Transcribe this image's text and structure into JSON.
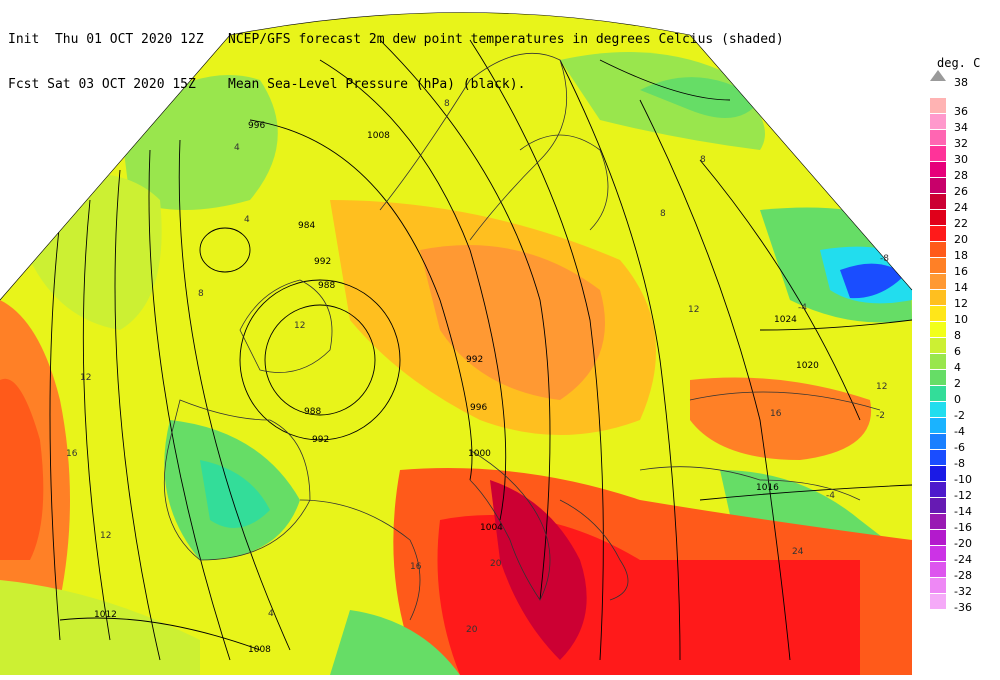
{
  "header": {
    "line1_left": "Init  Thu 01 OCT 2020 12Z",
    "line1_right": "NCEP/GFS forecast 2m dew point temperatures in degrees Celcius (shaded)",
    "line2_left": "Fcst Sat 03 OCT 2020 15Z",
    "line2_right": "Mean Sea-Level Pressure (hPa) (black)."
  },
  "legend": {
    "title": "deg. C",
    "top_value": "38",
    "entries": [
      {
        "label": "36",
        "color": "#ffb3b3"
      },
      {
        "label": "34",
        "color": "#ff99cc"
      },
      {
        "label": "32",
        "color": "#ff66b2"
      },
      {
        "label": "30",
        "color": "#ff3399"
      },
      {
        "label": "28",
        "color": "#e6007a"
      },
      {
        "label": "26",
        "color": "#c8006a"
      },
      {
        "label": "24",
        "color": "#cc0033"
      },
      {
        "label": "22",
        "color": "#e0001a"
      },
      {
        "label": "20",
        "color": "#ff1a1a"
      },
      {
        "label": "18",
        "color": "#ff5a1a"
      },
      {
        "label": "16",
        "color": "#ff8026"
      },
      {
        "label": "14",
        "color": "#ff9933"
      },
      {
        "label": "12",
        "color": "#ffbf1f"
      },
      {
        "label": "10",
        "color": "#ffe619"
      },
      {
        "label": "8",
        "color": "#f2ff1a"
      },
      {
        "label": "6",
        "color": "#ccf033"
      },
      {
        "label": "4",
        "color": "#99e64d"
      },
      {
        "label": "2",
        "color": "#66dd66"
      },
      {
        "label": "0",
        "color": "#33dd99"
      },
      {
        "label": "-2",
        "color": "#22ddee"
      },
      {
        "label": "-4",
        "color": "#1ab3ff"
      },
      {
        "label": "-6",
        "color": "#1a80ff"
      },
      {
        "label": "-8",
        "color": "#1a4dff"
      },
      {
        "label": "-10",
        "color": "#1a1ae6"
      },
      {
        "label": "-12",
        "color": "#4d1acc"
      },
      {
        "label": "-14",
        "color": "#661ab3"
      },
      {
        "label": "-16",
        "color": "#991ab3"
      },
      {
        "label": "-20",
        "color": "#b31acc"
      },
      {
        "label": "-24",
        "color": "#cc33e6"
      },
      {
        "label": "-28",
        "color": "#dd55ee"
      },
      {
        "label": "-32",
        "color": "#ee88f5"
      },
      {
        "label": "-36",
        "color": "#f5aaf8"
      }
    ]
  },
  "pressure_labels": [
    "996",
    "1008",
    "992",
    "988",
    "984",
    "988",
    "992",
    "992",
    "996",
    "1000",
    "1004",
    "1008",
    "1012",
    "1016",
    "1020",
    "1024"
  ],
  "dewpoint_labels": [
    "4",
    "4",
    "8",
    "12",
    "8",
    "12",
    "16",
    "12",
    "4",
    "8",
    "16",
    "12",
    "20",
    "20",
    "8",
    "-8",
    "-4",
    "12",
    "16",
    "-4",
    "-2",
    "24"
  ]
}
